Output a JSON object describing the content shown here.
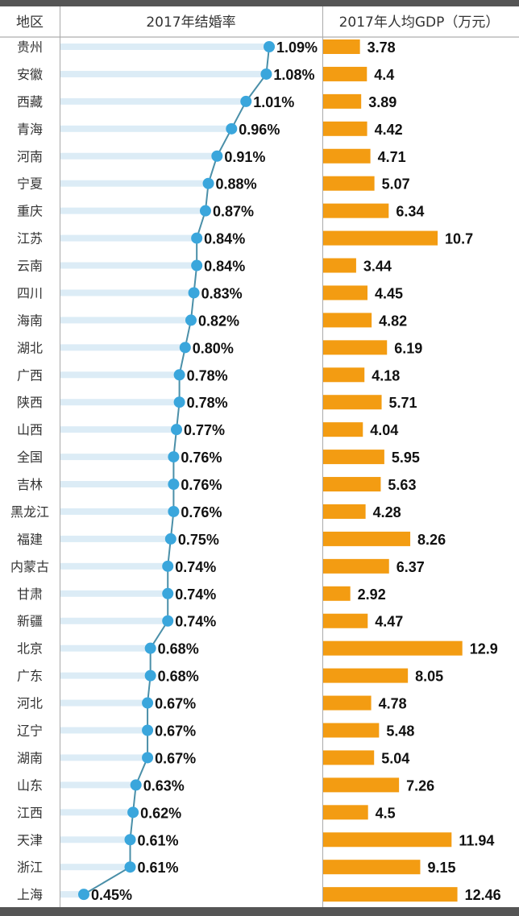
{
  "chart_data": {
    "type": "bar",
    "headers": {
      "region": "地区",
      "marriage": "2017年结婚率",
      "gdp": "2017年人均GDP（万元）"
    },
    "categories": [
      "贵州",
      "安徽",
      "西藏",
      "青海",
      "河南",
      "宁夏",
      "重庆",
      "江苏",
      "云南",
      "四川",
      "海南",
      "湖北",
      "广西",
      "陕西",
      "山西",
      "全国",
      "吉林",
      "黑龙江",
      "福建",
      "内蒙古",
      "甘肃",
      "新疆",
      "北京",
      "广东",
      "河北",
      "辽宁",
      "湖南",
      "山东",
      "江西",
      "天津",
      "浙江",
      "上海"
    ],
    "series": [
      {
        "name": "2017年结婚率",
        "type": "line",
        "unit": "%",
        "color": "#3aa6dc",
        "values": [
          1.09,
          1.08,
          1.01,
          0.96,
          0.91,
          0.88,
          0.87,
          0.84,
          0.84,
          0.83,
          0.82,
          0.8,
          0.78,
          0.78,
          0.77,
          0.76,
          0.76,
          0.76,
          0.75,
          0.74,
          0.74,
          0.74,
          0.68,
          0.68,
          0.67,
          0.67,
          0.67,
          0.63,
          0.62,
          0.61,
          0.61,
          0.45
        ],
        "labels": [
          "1.09%",
          "1.08%",
          "1.01%",
          "0.96%",
          "0.91%",
          "0.88%",
          "0.87%",
          "0.84%",
          "0.84%",
          "0.83%",
          "0.82%",
          "0.80%",
          "0.78%",
          "0.78%",
          "0.77%",
          "0.76%",
          "0.76%",
          "0.76%",
          "0.75%",
          "0.74%",
          "0.74%",
          "0.74%",
          "0.68%",
          "0.68%",
          "0.67%",
          "0.67%",
          "0.67%",
          "0.63%",
          "0.62%",
          "0.61%",
          "0.61%",
          "0.45%"
        ]
      },
      {
        "name": "2017年人均GDP（万元）",
        "type": "bar",
        "color": "#f39c12",
        "values": [
          3.78,
          4.4,
          3.89,
          4.42,
          4.71,
          5.07,
          6.34,
          10.7,
          3.44,
          4.45,
          4.82,
          6.19,
          4.18,
          5.71,
          4.04,
          5.95,
          5.63,
          4.28,
          8.26,
          6.37,
          2.92,
          4.47,
          12.9,
          8.05,
          4.78,
          5.48,
          5.04,
          7.26,
          4.5,
          11.94,
          9.15,
          12.46
        ],
        "labels": [
          "3.78",
          "4.4",
          "3.89",
          "4.42",
          "4.71",
          "5.07",
          "6.34",
          "10.7",
          "3.44",
          "4.45",
          "4.82",
          "6.19",
          "4.18",
          "5.71",
          "4.04",
          "5.95",
          "5.63",
          "4.28",
          "8.26",
          "6.37",
          "2.92",
          "4.47",
          "12.9",
          "8.05",
          "4.78",
          "5.48",
          "5.04",
          "7.26",
          "4.5",
          "11.94",
          "9.15",
          "12.46"
        ]
      }
    ]
  }
}
